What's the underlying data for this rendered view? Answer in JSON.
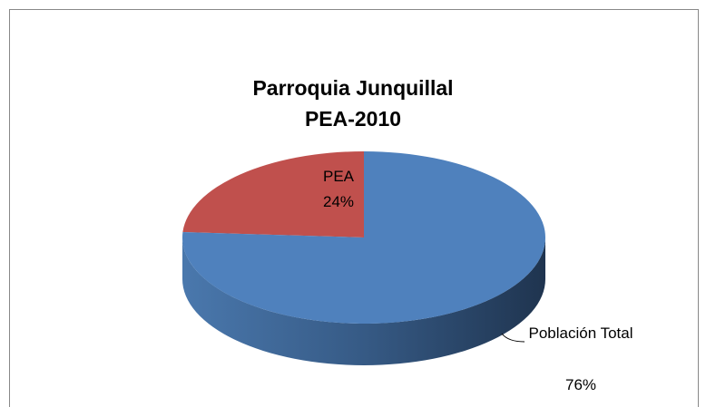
{
  "chart_data": {
    "type": "pie3d",
    "title": [
      "Parroquia Junquillal",
      "PEA-2010"
    ],
    "categories": [
      "PEA",
      "Población Total"
    ],
    "values": [
      24,
      76
    ],
    "value_labels": [
      "24%",
      "76%"
    ],
    "colors": [
      "#c0504d",
      "#4f81bd"
    ]
  }
}
